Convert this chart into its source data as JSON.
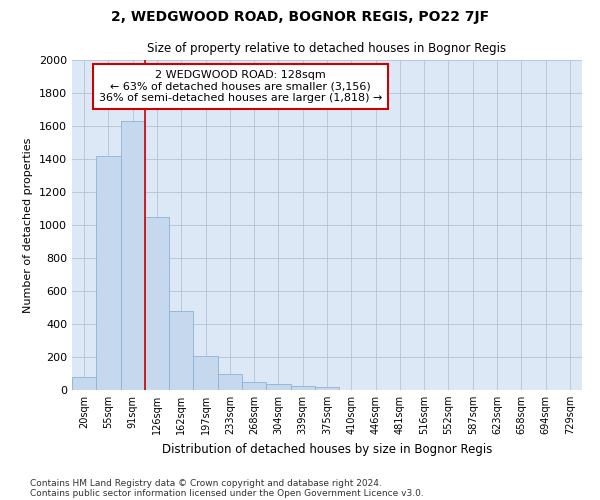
{
  "title": "2, WEDGWOOD ROAD, BOGNOR REGIS, PO22 7JF",
  "subtitle": "Size of property relative to detached houses in Bognor Regis",
  "xlabel": "Distribution of detached houses by size in Bognor Regis",
  "ylabel": "Number of detached properties",
  "bar_color": "#c5d8ed",
  "bar_edge_color": "#8ab4d4",
  "categories": [
    "20sqm",
    "55sqm",
    "91sqm",
    "126sqm",
    "162sqm",
    "197sqm",
    "233sqm",
    "268sqm",
    "304sqm",
    "339sqm",
    "375sqm",
    "410sqm",
    "446sqm",
    "481sqm",
    "516sqm",
    "552sqm",
    "587sqm",
    "623sqm",
    "658sqm",
    "694sqm",
    "729sqm"
  ],
  "values": [
    80,
    1420,
    1630,
    1050,
    480,
    205,
    100,
    48,
    35,
    25,
    18,
    0,
    0,
    0,
    0,
    0,
    0,
    0,
    0,
    0,
    0
  ],
  "ylim": [
    0,
    2000
  ],
  "yticks": [
    0,
    200,
    400,
    600,
    800,
    1000,
    1200,
    1400,
    1600,
    1800,
    2000
  ],
  "vline_color": "#cc0000",
  "vline_x_index": 3,
  "annotation_line1": "2 WEDGWOOD ROAD: 128sqm",
  "annotation_line2": "← 63% of detached houses are smaller (3,156)",
  "annotation_line3": "36% of semi-detached houses are larger (1,818) →",
  "annotation_box_color": "#ffffff",
  "annotation_box_edge_color": "#cc0000",
  "bg_color": "#dce8f5",
  "fig_bg_color": "#ffffff",
  "grid_color": "#b0c4d8",
  "footnote1": "Contains HM Land Registry data © Crown copyright and database right 2024.",
  "footnote2": "Contains public sector information licensed under the Open Government Licence v3.0."
}
